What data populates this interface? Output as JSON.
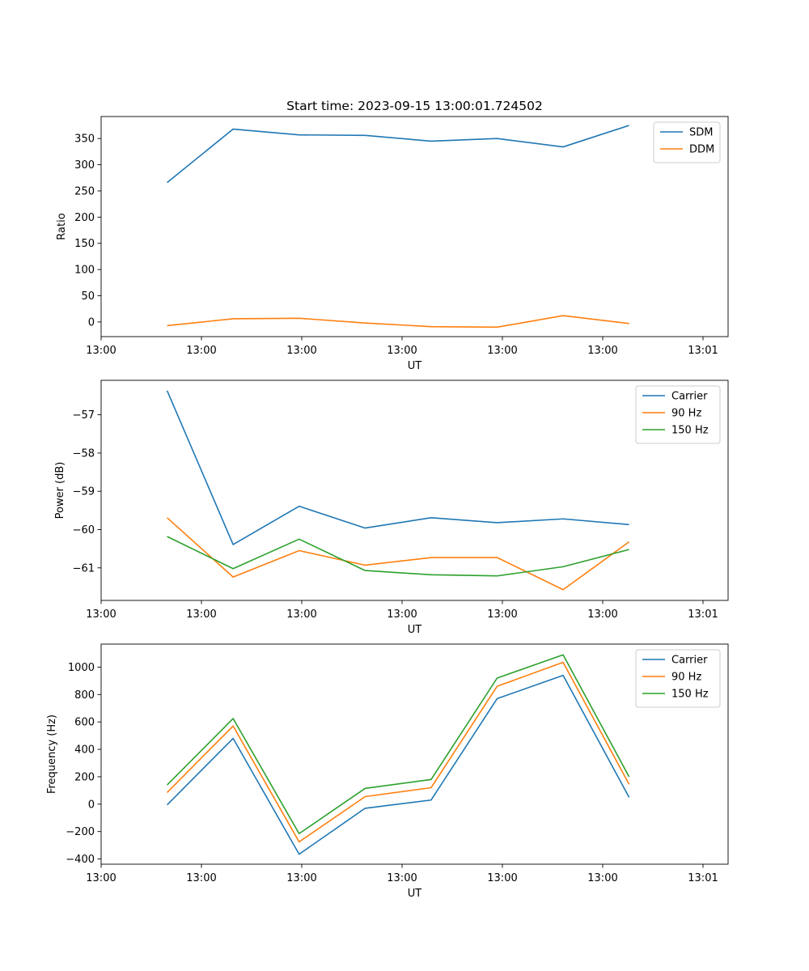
{
  "figure_title": "Start time: 2023-09-15 13:00:01.724502",
  "colors": {
    "blue": "#1f77b4",
    "orange": "#ff7f0e",
    "green": "#2ca02c"
  },
  "chart_data": [
    {
      "type": "line",
      "title": "Start time: 2023-09-15 13:00:01.724502",
      "xlabel": "UT",
      "ylabel": "Ratio",
      "x": [
        1,
        2,
        3,
        4,
        5,
        6,
        7,
        8
      ],
      "xlim": [
        0,
        9.5
      ],
      "x_tick_positions": [
        0,
        1.52,
        3.04,
        4.56,
        6.08,
        7.6,
        9.12
      ],
      "x_tick_labels": [
        "13:00",
        "13:00",
        "13:00",
        "13:00",
        "13:00",
        "13:00",
        "13:01"
      ],
      "ylim": [
        -28,
        392
      ],
      "y_ticks": [
        0,
        50,
        100,
        150,
        200,
        250,
        300,
        350
      ],
      "legend_position": "upper right",
      "series": [
        {
          "name": "SDM",
          "color": "#1f77b4",
          "values": [
            266,
            368,
            357,
            356,
            345,
            350,
            334,
            375
          ]
        },
        {
          "name": "DDM",
          "color": "#ff7f0e",
          "values": [
            -7,
            6,
            7,
            -2,
            -9,
            -10,
            12,
            -3
          ]
        }
      ]
    },
    {
      "type": "line",
      "xlabel": "UT",
      "ylabel": "Power (dB)",
      "x": [
        1,
        2,
        3,
        4,
        5,
        6,
        7,
        8
      ],
      "xlim": [
        0,
        9.5
      ],
      "x_tick_positions": [
        0,
        1.52,
        3.04,
        4.56,
        6.08,
        7.6,
        9.12
      ],
      "x_tick_labels": [
        "13:00",
        "13:00",
        "13:00",
        "13:00",
        "13:00",
        "13:00",
        "13:01"
      ],
      "ylim": [
        -61.85,
        -56.1
      ],
      "y_ticks": [
        -61,
        -60,
        -59,
        -58,
        -57
      ],
      "y_tick_labels": [
        "−61",
        "−60",
        "−59",
        "−58",
        "−57"
      ],
      "legend_position": "upper right",
      "series": [
        {
          "name": "Carrier",
          "color": "#1f77b4",
          "values": [
            -56.37,
            -60.39,
            -59.39,
            -59.96,
            -59.69,
            -59.82,
            -59.72,
            -59.87
          ]
        },
        {
          "name": "90 Hz",
          "color": "#ff7f0e",
          "values": [
            -59.69,
            -61.24,
            -60.55,
            -60.93,
            -60.73,
            -60.73,
            -61.57,
            -60.32
          ]
        },
        {
          "name": "150 Hz",
          "color": "#2ca02c",
          "values": [
            -60.18,
            -61.02,
            -60.25,
            -61.07,
            -61.18,
            -61.21,
            -60.97,
            -60.52
          ]
        }
      ]
    },
    {
      "type": "line",
      "xlabel": "UT",
      "ylabel": "Frequency (Hz)",
      "x": [
        1,
        2,
        3,
        4,
        5,
        6,
        7,
        8
      ],
      "xlim": [
        0,
        9.5
      ],
      "x_tick_positions": [
        0,
        1.52,
        3.04,
        4.56,
        6.08,
        7.6,
        9.12
      ],
      "x_tick_labels": [
        "13:00",
        "13:00",
        "13:00",
        "13:00",
        "13:00",
        "13:00",
        "13:01"
      ],
      "ylim": [
        -438,
        1168
      ],
      "y_ticks": [
        -400,
        -200,
        0,
        200,
        400,
        600,
        800,
        1000
      ],
      "y_tick_labels": [
        "−400",
        "−200",
        "0",
        "200",
        "400",
        "600",
        "800",
        "1000"
      ],
      "legend_position": "upper right",
      "series": [
        {
          "name": "Carrier",
          "color": "#1f77b4",
          "values": [
            -5,
            480,
            -365,
            -30,
            30,
            770,
            940,
            50
          ]
        },
        {
          "name": "90 Hz",
          "color": "#ff7f0e",
          "values": [
            85,
            570,
            -275,
            55,
            120,
            860,
            1035,
            145
          ]
        },
        {
          "name": "150 Hz",
          "color": "#2ca02c",
          "values": [
            140,
            625,
            -215,
            115,
            180,
            920,
            1090,
            200
          ]
        }
      ]
    }
  ]
}
